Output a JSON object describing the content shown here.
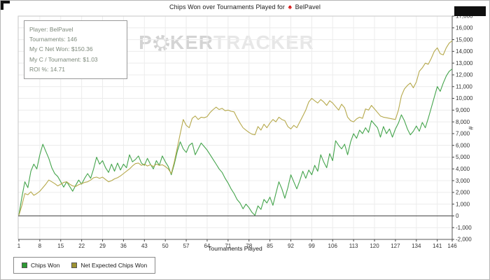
{
  "title": {
    "prefix": "Chips Won over Tournaments Played for",
    "player": "BelPavel"
  },
  "icons": {
    "spade": "♠"
  },
  "watermark": {
    "poker_p": "P",
    "poker_rest": "KER",
    "tracker": "TRACKER"
  },
  "info_box": {
    "lines": [
      "Player: BelPavel",
      "Tournaments: 146",
      "My C Net Won: $150.36",
      "My C / Tournament: $1.03",
      "ROI %: 14.71"
    ]
  },
  "y_axis_symbol": "#",
  "chart_data": {
    "type": "line",
    "title": "Chips Won over Tournaments Played for BelPavel",
    "xlabel": "Tournaments Played",
    "ylabel": "#",
    "x_ticks": [
      1,
      8,
      15,
      22,
      29,
      36,
      43,
      50,
      57,
      64,
      71,
      78,
      85,
      92,
      99,
      106,
      113,
      120,
      127,
      134,
      141,
      146
    ],
    "xlim": [
      1,
      146
    ],
    "ylim": [
      -2000,
      17000
    ],
    "y_tick_step": 1000,
    "grid": true,
    "legend_position": "bottom-left",
    "series": [
      {
        "name": "Chips Won",
        "color": "#44a44c",
        "legend_color": "#2d9a33",
        "values": [
          100,
          1600,
          2900,
          2400,
          3800,
          4400,
          4000,
          5200,
          6100,
          5500,
          4900,
          4100,
          3600,
          3350,
          2900,
          2450,
          2900,
          2500,
          2100,
          2600,
          3050,
          2700,
          3200,
          3600,
          3200,
          4000,
          5000,
          4400,
          4700,
          4100,
          3700,
          4400,
          3800,
          4500,
          3900,
          4400,
          4100,
          5200,
          4600,
          4800,
          5100,
          4500,
          4300,
          4900,
          4400,
          4000,
          4700,
          4300,
          5100,
          4600,
          4200,
          3500,
          4400,
          5500,
          6300,
          5700,
          5400,
          6000,
          6200,
          5200,
          5700,
          6200,
          5900,
          5600,
          5200,
          4800,
          4400,
          4000,
          3700,
          3200,
          2800,
          2300,
          1900,
          1400,
          1100,
          600,
          1000,
          700,
          300,
          50,
          850,
          550,
          1400,
          1100,
          1600,
          900,
          1900,
          2900,
          2300,
          1500,
          2400,
          3500,
          2900,
          2300,
          3000,
          3800,
          3200,
          3900,
          3500,
          4300,
          3800,
          5200,
          4600,
          4100,
          5300,
          4700,
          6400,
          6000,
          5700,
          6100,
          5200,
          6300,
          7000,
          6600,
          7300,
          7000,
          7500,
          7100,
          8100,
          7800,
          7500,
          6700,
          7600,
          7000,
          7400,
          6700,
          7400,
          7900,
          8600,
          8100,
          7400,
          6900,
          7200,
          7650,
          7200,
          7950,
          7500,
          8300,
          9200,
          10100,
          11000,
          10600,
          11300,
          11900,
          12300,
          12500
        ]
      },
      {
        "name": "Net Expected Chips Won",
        "color": "#b6a94c",
        "legend_color": "#9d9232",
        "values": [
          50,
          900,
          1900,
          1800,
          2050,
          1750,
          1900,
          2100,
          2400,
          2700,
          3050,
          2900,
          2750,
          2550,
          2700,
          2850,
          2900,
          2700,
          2550,
          2500,
          2650,
          2750,
          2850,
          2900,
          3050,
          3250,
          3300,
          3200,
          3300,
          3100,
          2900,
          3000,
          3150,
          3250,
          3400,
          3600,
          3800,
          4000,
          4250,
          4450,
          4500,
          4300,
          4400,
          4250,
          4350,
          4200,
          4400,
          4300,
          4350,
          4200,
          4000,
          3600,
          4600,
          5800,
          7000,
          8200,
          7700,
          7500,
          8300,
          8500,
          8200,
          8400,
          8350,
          8450,
          8800,
          9050,
          9250,
          9050,
          9150,
          8950,
          9000,
          8900,
          8850,
          8350,
          7900,
          7500,
          7300,
          7100,
          6950,
          6900,
          7600,
          7300,
          7800,
          7500,
          7900,
          8200,
          8000,
          8400,
          8200,
          8100,
          7600,
          7400,
          7700,
          7500,
          8000,
          8500,
          9000,
          9700,
          10000,
          9800,
          9600,
          9900,
          9700,
          9400,
          9800,
          9600,
          9300,
          9000,
          9500,
          9200,
          8400,
          8100,
          8000,
          8250,
          8400,
          8300,
          9100,
          9000,
          9400,
          9100,
          8800,
          8500,
          8400,
          8350,
          8300,
          8250,
          8200,
          9000,
          10200,
          10800,
          11100,
          11300,
          10900,
          11400,
          12300,
          12600,
          13000,
          12900,
          13400,
          14000,
          14300,
          13800,
          13700,
          14300,
          14700,
          14900
        ]
      }
    ]
  }
}
